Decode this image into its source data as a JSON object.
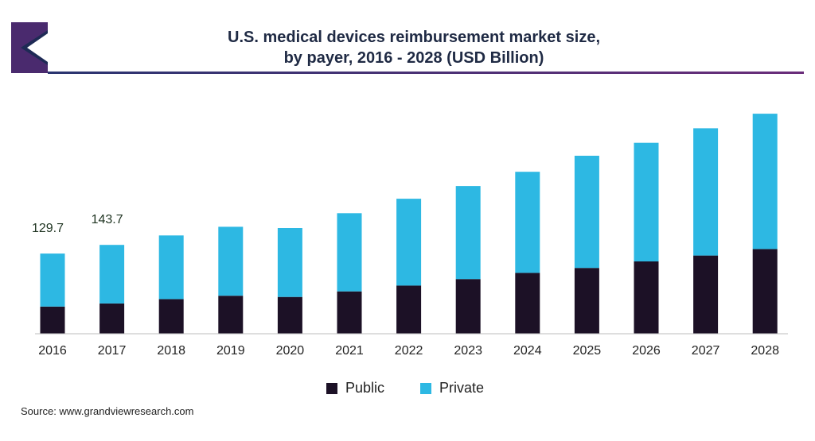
{
  "header": {
    "title_line1": "U.S. medical devices reimbursement market size,",
    "title_line2": "by payer, 2016 - 2028 (USD Billion)"
  },
  "logo": {
    "name": "grand-view-research-logo",
    "colors": [
      "#4a2a6e",
      "#1e2a55",
      "#ffffff"
    ]
  },
  "source": "Source: www.grandviewresearch.com",
  "chart_data": {
    "type": "bar",
    "stacked": true,
    "title": "U.S. medical devices reimbursement market size, by payer, 2016 - 2028 (USD Billion)",
    "categories": [
      "2016",
      "2017",
      "2018",
      "2019",
      "2020",
      "2021",
      "2022",
      "2023",
      "2024",
      "2025",
      "2026",
      "2027",
      "2028"
    ],
    "series": [
      {
        "name": "Public",
        "color": "#1c1126",
        "values": [
          44.0,
          49.0,
          56.0,
          61.5,
          59.5,
          68.5,
          78.0,
          88.5,
          98.5,
          106.5,
          117.0,
          126.5,
          137.0
        ]
      },
      {
        "name": "Private",
        "color": "#2db8e3",
        "values": [
          85.7,
          94.7,
          103.0,
          111.5,
          111.5,
          126.5,
          140.5,
          150.5,
          163.5,
          181.5,
          192.0,
          206.0,
          219.0
        ]
      }
    ],
    "data_labels": {
      "2016": "129.7",
      "2017": "143.7"
    },
    "ylim": [
      0,
      360
    ],
    "grid": false,
    "legend": "bottom-center"
  }
}
